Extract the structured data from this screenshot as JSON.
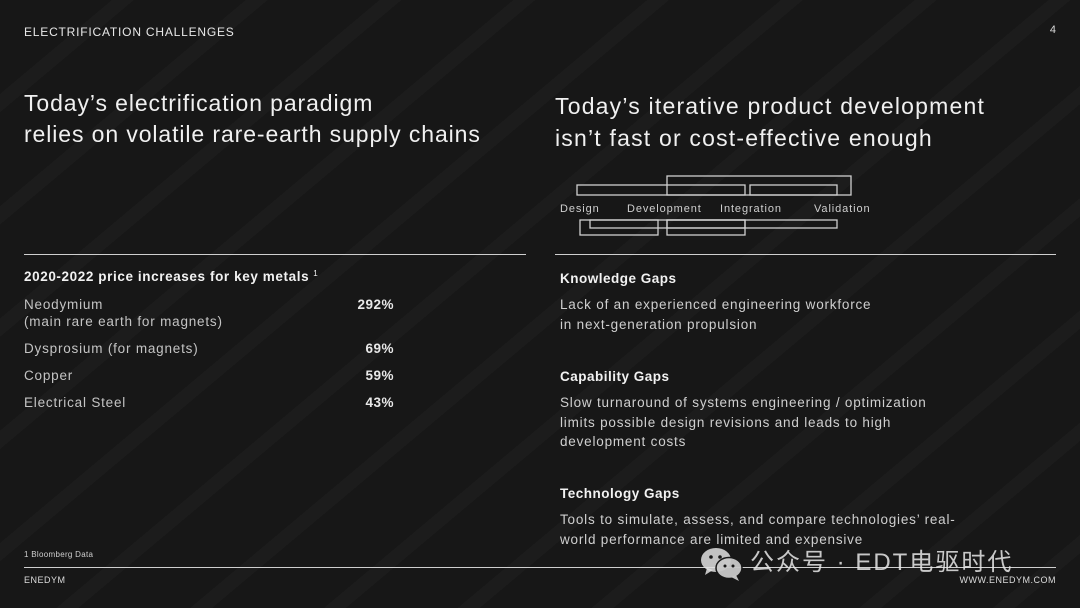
{
  "slide": {
    "section_title": "ELECTRIFICATION CHALLENGES",
    "page_number": "4",
    "footnote": "1 Bloomberg Data",
    "footer_left": "ENEDYM",
    "footer_right": "WWW.ENEDYM.COM"
  },
  "left": {
    "headline": [
      "Today’s electrification paradigm",
      "relies on volatile rare-earth supply chains"
    ],
    "table_title": "2020-2022 price increases for key metals",
    "table_title_note": "1",
    "rows": [
      {
        "metal": "Neodymium",
        "detail": "(main rare earth for magnets)",
        "increase": "292%"
      },
      {
        "metal": "Dysprosium (for magnets)",
        "increase": "69%"
      },
      {
        "metal": "Copper",
        "increase": "59%"
      },
      {
        "metal": "Electrical Steel",
        "increase": "43%"
      }
    ]
  },
  "right": {
    "headline": [
      "Today’s iterative product development",
      "isn’t fast or cost-effective enough"
    ],
    "diagram": {
      "stages": [
        "Design",
        "Development",
        "Integration",
        "Validation"
      ]
    },
    "gaps": [
      {
        "title": "Knowledge Gaps",
        "lines": [
          "Lack of an experienced engineering workforce",
          "in next-generation propulsion"
        ]
      },
      {
        "title": "Capability Gaps",
        "lines": [
          "Slow turnaround of systems engineering / optimization",
          "limits possible design revisions and leads to high",
          "development costs"
        ]
      },
      {
        "title": "Technology Gaps",
        "lines": [
          "Tools to simulate, assess, and compare technologies’ real-",
          "world performance are limited and expensive"
        ]
      }
    ]
  },
  "watermark": {
    "icon": "wechat-icon",
    "text": "公众号 · EDT电驱时代"
  },
  "colors": {
    "background": "#171717",
    "text": "#e4e4e4",
    "rule": "#cfcfcf"
  }
}
